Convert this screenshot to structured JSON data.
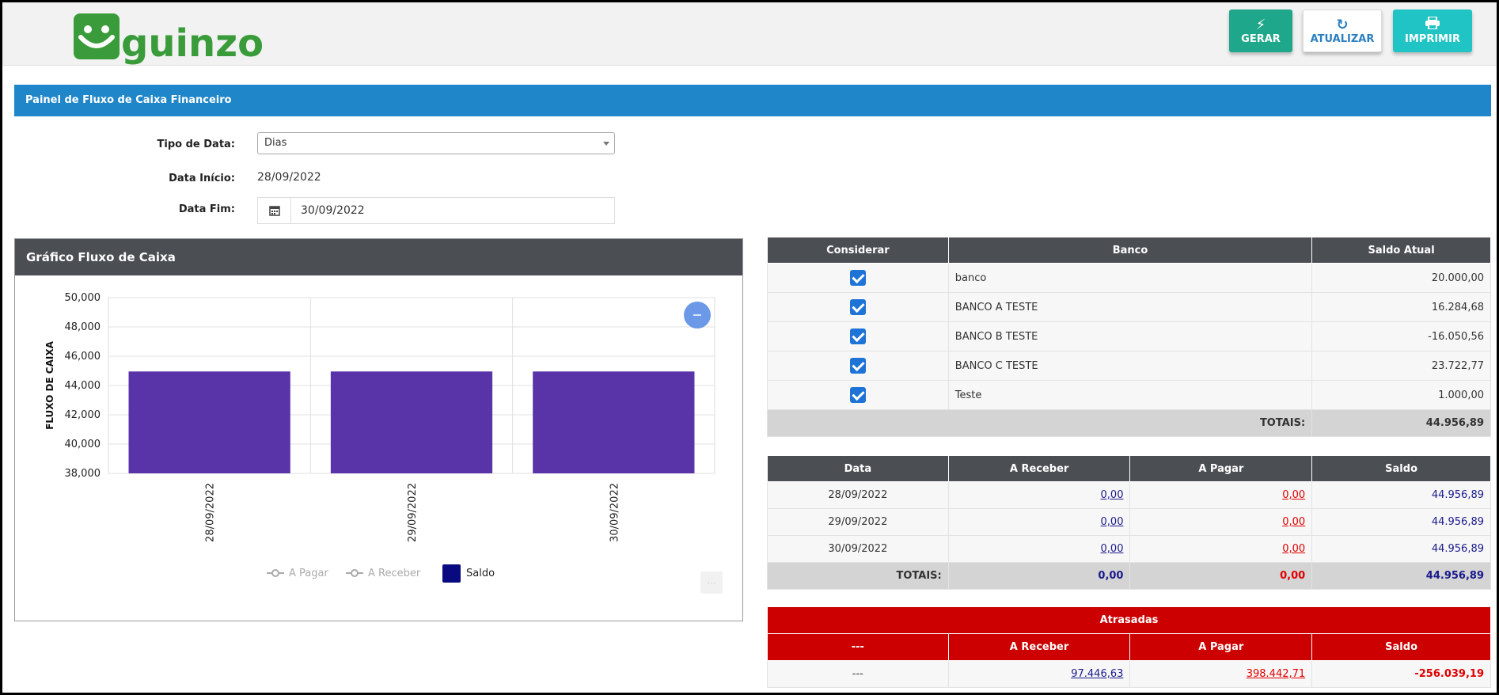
{
  "header": {
    "logo_text": "guinzo",
    "buttons": {
      "gerar": "GERAR",
      "atualizar": "ATUALIZAR",
      "imprimir": "IMPRIMIR"
    }
  },
  "panel": {
    "title": "Painel de Fluxo de Caixa Financeiro"
  },
  "form": {
    "tipo_data_label": "Tipo de Data:",
    "tipo_data_value": "Dias",
    "data_inicio_label": "Data Início:",
    "data_inicio_value": "28/09/2022",
    "data_fim_label": "Data Fim:",
    "data_fim_value": "30/09/2022"
  },
  "chart_panel": {
    "title": "Gráfico Fluxo de Caixa"
  },
  "chart_data": {
    "type": "bar",
    "title": "",
    "xlabel": "",
    "ylabel": "FLUXO DE CAIXA",
    "categories": [
      "28/09/2022",
      "29/09/2022",
      "30/09/2022"
    ],
    "series": [
      {
        "name": "A Pagar",
        "values": [
          0,
          0,
          0
        ]
      },
      {
        "name": "A Receber",
        "values": [
          0,
          0,
          0
        ]
      },
      {
        "name": "Saldo",
        "values": [
          44956.89,
          44956.89,
          44956.89
        ]
      }
    ],
    "ylim": [
      38000,
      50000
    ],
    "yticks": [
      "38,000",
      "40,000",
      "42,000",
      "44,000",
      "46,000",
      "48,000",
      "50,000"
    ],
    "legend_position": "bottom",
    "grid": true,
    "bar_color": "#5933a8",
    "legend_saldo_color": "#0a0a80"
  },
  "bancos": {
    "headers": [
      "Considerar",
      "Banco",
      "Saldo Atual"
    ],
    "rows": [
      {
        "nome": "banco",
        "saldo": "20.000,00"
      },
      {
        "nome": "BANCO A TESTE",
        "saldo": "16.284,68"
      },
      {
        "nome": "BANCO B TESTE",
        "saldo": "-16.050,56"
      },
      {
        "nome": "BANCO C TESTE",
        "saldo": "23.722,77"
      },
      {
        "nome": "Teste",
        "saldo": "1.000,00"
      }
    ],
    "totais_label": "TOTAIS:",
    "totais_value": "44.956,89"
  },
  "fluxo": {
    "headers": [
      "Data",
      "A Receber",
      "A Pagar",
      "Saldo"
    ],
    "rows": [
      {
        "data": "28/09/2022",
        "receber": "0,00",
        "pagar": "0,00",
        "saldo": "44.956,89"
      },
      {
        "data": "29/09/2022",
        "receber": "0,00",
        "pagar": "0,00",
        "saldo": "44.956,89"
      },
      {
        "data": "30/09/2022",
        "receber": "0,00",
        "pagar": "0,00",
        "saldo": "44.956,89"
      }
    ],
    "totais_label": "TOTAIS:",
    "totais_receber": "0,00",
    "totais_pagar": "0,00",
    "totais_saldo": "44.956,89"
  },
  "atrasadas": {
    "title": "Atrasadas",
    "headers": [
      "---",
      "A Receber",
      "A Pagar",
      "Saldo"
    ],
    "row": {
      "label": "---",
      "receber": "97.446,63",
      "pagar": "398.442,71",
      "saldo": "-256.039,19"
    }
  },
  "colors": {
    "brand_green": "#3a9b3a",
    "panel_blue": "#1f86c9",
    "header_dark": "#4b4f54",
    "alert_red": "#cc0000"
  }
}
